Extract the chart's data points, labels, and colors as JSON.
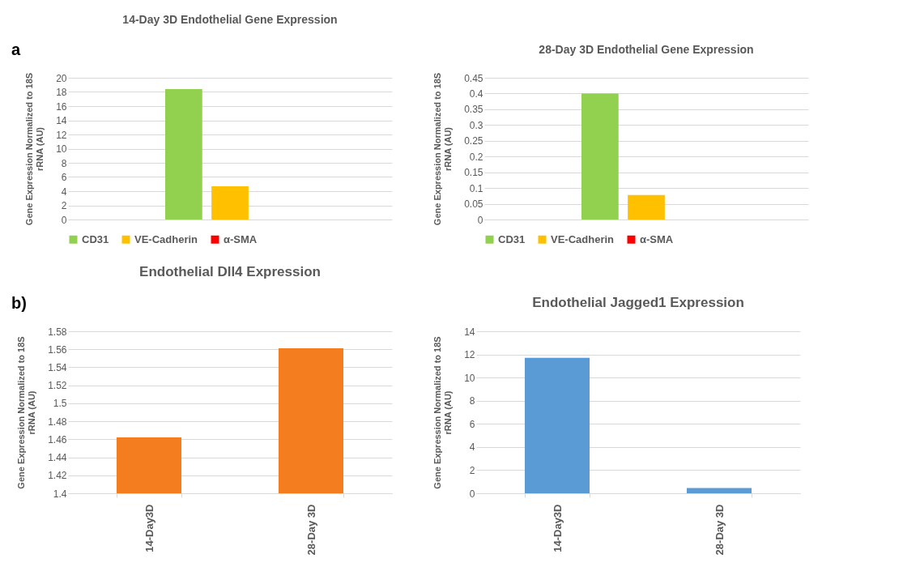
{
  "chart_data": [
    {
      "type": "bar",
      "title": "14-Day 3D Endothelial Gene Expression",
      "ylabel": "Gene Expression Normalized to 18S rRNA (AU)",
      "annotations": [
        "a"
      ],
      "categories": [
        null
      ],
      "series": [
        {
          "name": "CD31",
          "color": "#92d050",
          "values": [
            18.4
          ]
        },
        {
          "name": "VE-Cadherin",
          "color": "#ffc000",
          "values": [
            4.7
          ]
        },
        {
          "name": "α-SMA",
          "color": "#ff0000",
          "values": [
            0
          ]
        }
      ],
      "ylim": [
        0,
        20
      ],
      "yticks": [
        0,
        2,
        4,
        6,
        8,
        10,
        12,
        14,
        16,
        18,
        20
      ],
      "grid": "y",
      "legend": "bottom",
      "tick_labels": "y"
    },
    {
      "type": "bar",
      "title": "28-Day 3D Endothelial Gene Expression",
      "ylabel": "Gene Expression Normalized to 18S rRNA (AU)",
      "categories": [
        null
      ],
      "series": [
        {
          "name": "CD31",
          "color": "#92d050",
          "values": [
            0.4
          ]
        },
        {
          "name": "VE-Cadherin",
          "color": "#ffc000",
          "values": [
            0.078
          ]
        },
        {
          "name": "α-SMA",
          "color": "#ff0000",
          "values": [
            0
          ]
        }
      ],
      "ylim": [
        0,
        0.45
      ],
      "yticks": [
        0,
        0.05,
        0.1,
        0.15,
        0.2,
        0.25,
        0.3,
        0.35,
        0.4,
        0.45
      ],
      "grid": "y",
      "legend": "bottom",
      "tick_labels": "y"
    },
    {
      "type": "bar",
      "title": "Endothelial Dll4 Expression",
      "ylabel": "Gene Expression Normalized to 18S rRNA (AU)",
      "annotations": [
        "b)"
      ],
      "categories": [
        "14-Day3D",
        "28-Day 3D"
      ],
      "values": [
        1.462,
        1.561
      ],
      "color": "#f47d20",
      "ylim": [
        1.4,
        1.58
      ],
      "yticks": [
        1.4,
        1.42,
        1.44,
        1.46,
        1.48,
        1.5,
        1.52,
        1.54,
        1.56,
        1.58
      ],
      "grid": "y"
    },
    {
      "type": "bar",
      "title": "Endothelial Jagged1 Expression",
      "ylabel": "Gene Expression Normalized to 18S rRNA (AU)",
      "categories": [
        "14-Day3D",
        "28-Day 3D"
      ],
      "values": [
        11.7,
        0.46
      ],
      "color": "#5b9bd5",
      "ylim": [
        0,
        14
      ],
      "yticks": [
        0,
        2,
        4,
        6,
        8,
        10,
        12,
        14
      ],
      "grid": "y"
    }
  ]
}
